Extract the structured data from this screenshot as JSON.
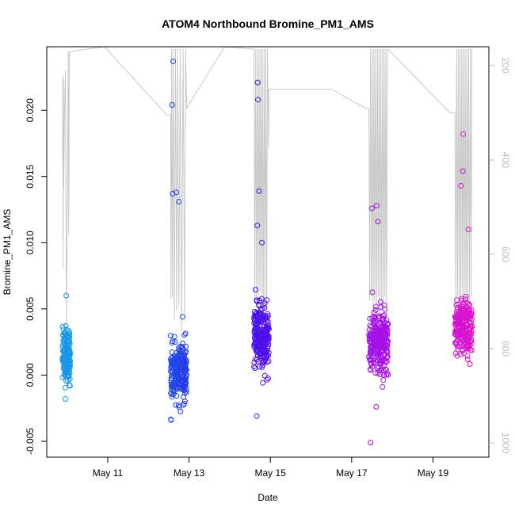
{
  "chart_data": {
    "type": "scatter",
    "title": "ATOM4 Northbound Bromine_PM1_AMS",
    "xlabel": "Date",
    "ylabel": "Bromine_PM1_AMS",
    "xlim": [
      "2016-05-09T12:00",
      "2016-05-20T09:00"
    ],
    "ylim": [
      -0.0062,
      0.0248
    ],
    "x_ticks": [
      {
        "date": "2016-05-11",
        "label": "May 11"
      },
      {
        "date": "2016-05-13",
        "label": "May 13"
      },
      {
        "date": "2016-05-15",
        "label": "May 15"
      },
      {
        "date": "2016-05-17",
        "label": "May 17"
      },
      {
        "date": "2016-05-19",
        "label": "May 19"
      }
    ],
    "y_ticks": [
      {
        "value": -0.005,
        "label": "-0.005"
      },
      {
        "value": 0.0,
        "label": "0.000"
      },
      {
        "value": 0.005,
        "label": "0.005"
      },
      {
        "value": 0.01,
        "label": "0.010"
      },
      {
        "value": 0.015,
        "label": "0.015"
      },
      {
        "value": 0.02,
        "label": "0.020"
      }
    ],
    "right_axis": {
      "inverted": true,
      "ylim": [
        1030,
        160
      ],
      "ticks": [
        {
          "value": 200,
          "label": "200"
        },
        {
          "value": 400,
          "label": "400"
        },
        {
          "value": 600,
          "label": "600"
        },
        {
          "value": 800,
          "label": "800"
        },
        {
          "value": 1000,
          "label": "1000"
        }
      ],
      "color": "#bdbdbd"
    },
    "grid": false,
    "legend": "none",
    "marker": "open-circle",
    "line_color": "#c8c8c8",
    "color_gradient": [
      "#17a2e6",
      "#1f6fe8",
      "#2a10e8",
      "#7d10e8",
      "#b010e6",
      "#e914c4"
    ],
    "clusters": [
      {
        "start": "2016-05-09T21:20",
        "end": "2016-05-10T01:50",
        "center": 0.0015,
        "spread": 0.0012,
        "count": 160
      },
      {
        "start": "2016-05-12T13:10",
        "end": "2016-05-12T22:40",
        "center": 0.0002,
        "spread": 0.0012,
        "count": 240
      },
      {
        "start": "2016-05-14T14:20",
        "end": "2016-05-14T23:10",
        "center": 0.0028,
        "spread": 0.0014,
        "count": 260
      },
      {
        "start": "2016-05-17T10:10",
        "end": "2016-05-17T21:30",
        "center": 0.0025,
        "spread": 0.0014,
        "count": 280
      },
      {
        "start": "2016-05-19T13:00",
        "end": "2016-05-19T23:10",
        "center": 0.0035,
        "spread": 0.0012,
        "count": 240
      }
    ],
    "outliers": [
      {
        "x": "2016-05-09T23:30",
        "y": 0.006
      },
      {
        "x": "2016-05-09T23:00",
        "y": -0.0018
      },
      {
        "x": "2016-05-12T14:40",
        "y": 0.0237
      },
      {
        "x": "2016-05-12T14:00",
        "y": 0.0204
      },
      {
        "x": "2016-05-12T14:20",
        "y": 0.0137
      },
      {
        "x": "2016-05-12T16:30",
        "y": 0.0138
      },
      {
        "x": "2016-05-12T18:00",
        "y": 0.0131
      },
      {
        "x": "2016-05-12T20:10",
        "y": 0.0044
      },
      {
        "x": "2016-05-12T13:20",
        "y": -0.0034
      },
      {
        "x": "2016-05-14T16:30",
        "y": 0.0221
      },
      {
        "x": "2016-05-14T16:40",
        "y": 0.0208
      },
      {
        "x": "2016-05-14T17:20",
        "y": 0.0139
      },
      {
        "x": "2016-05-14T16:20",
        "y": 0.0113
      },
      {
        "x": "2016-05-14T19:00",
        "y": 0.01
      },
      {
        "x": "2016-05-14T16:00",
        "y": -0.0031
      },
      {
        "x": "2016-05-17T12:00",
        "y": 0.0126
      },
      {
        "x": "2016-05-17T14:50",
        "y": 0.0128
      },
      {
        "x": "2016-05-17T15:30",
        "y": 0.0116
      },
      {
        "x": "2016-05-17T14:30",
        "y": -0.0024
      },
      {
        "x": "2016-05-17T11:10",
        "y": -0.0051
      },
      {
        "x": "2016-05-19T17:50",
        "y": 0.0182
      },
      {
        "x": "2016-05-19T17:40",
        "y": 0.0154
      },
      {
        "x": "2016-05-19T16:30",
        "y": 0.0143
      },
      {
        "x": "2016-05-19T21:00",
        "y": 0.011
      }
    ],
    "right_series": [
      [
        "2016-05-09T21:20",
        400
      ],
      [
        "2016-05-09T21:30",
        220
      ],
      [
        "2016-05-09T21:40",
        630
      ],
      [
        "2016-05-09T21:50",
        230
      ],
      [
        "2016-05-09T22:00",
        460
      ],
      [
        "2016-05-09T22:30",
        300
      ],
      [
        "2016-05-09T23:00",
        210
      ],
      [
        "2016-05-09T23:40",
        760
      ],
      [
        "2016-05-10T00:10",
        480
      ],
      [
        "2016-05-10T00:40",
        170
      ],
      [
        "2016-05-10T01:00",
        560
      ],
      [
        "2016-05-10T01:20",
        170
      ],
      [
        "2016-05-10T01:50",
        170
      ],
      [
        "2016-05-10T22:00",
        160
      ],
      [
        "2016-05-12T11:00",
        305
      ],
      [
        "2016-05-12T13:10",
        305
      ],
      [
        "2016-05-12T13:20",
        695
      ],
      [
        "2016-05-12T13:40",
        165
      ],
      [
        "2016-05-12T14:10",
        690
      ],
      [
        "2016-05-12T14:40",
        165
      ],
      [
        "2016-05-12T15:20",
        740
      ],
      [
        "2016-05-12T16:00",
        165
      ],
      [
        "2016-05-12T16:40",
        720
      ],
      [
        "2016-05-12T17:20",
        165
      ],
      [
        "2016-05-12T18:00",
        710
      ],
      [
        "2016-05-12T18:50",
        165
      ],
      [
        "2016-05-12T19:40",
        760
      ],
      [
        "2016-05-12T20:30",
        165
      ],
      [
        "2016-05-12T21:20",
        730
      ],
      [
        "2016-05-12T22:00",
        165
      ],
      [
        "2016-05-12T22:40",
        290
      ],
      [
        "2016-05-13T21:00",
        160
      ],
      [
        "2016-05-14T14:20",
        165
      ],
      [
        "2016-05-14T14:50",
        700
      ],
      [
        "2016-05-14T15:20",
        165
      ],
      [
        "2016-05-14T15:50",
        690
      ],
      [
        "2016-05-14T16:20",
        165
      ],
      [
        "2016-05-14T16:50",
        720
      ],
      [
        "2016-05-14T17:20",
        165
      ],
      [
        "2016-05-14T17:50",
        680
      ],
      [
        "2016-05-14T18:20",
        165
      ],
      [
        "2016-05-14T18:50",
        700
      ],
      [
        "2016-05-14T19:20",
        165
      ],
      [
        "2016-05-14T19:50",
        740
      ],
      [
        "2016-05-14T20:20",
        165
      ],
      [
        "2016-05-14T20:50",
        705
      ],
      [
        "2016-05-14T21:20",
        165
      ],
      [
        "2016-05-14T21:50",
        720
      ],
      [
        "2016-05-14T22:20",
        165
      ],
      [
        "2016-05-14T23:00",
        375
      ],
      [
        "2016-05-14T23:10",
        250
      ],
      [
        "2016-05-16T12:00",
        250
      ],
      [
        "2016-05-17T08:00",
        290
      ],
      [
        "2016-05-17T10:10",
        290
      ],
      [
        "2016-05-17T10:40",
        700
      ],
      [
        "2016-05-17T11:10",
        165
      ],
      [
        "2016-05-17T11:40",
        690
      ],
      [
        "2016-05-17T12:10",
        165
      ],
      [
        "2016-05-17T12:40",
        735
      ],
      [
        "2016-05-17T13:10",
        165
      ],
      [
        "2016-05-17T13:40",
        700
      ],
      [
        "2016-05-17T14:10",
        165
      ],
      [
        "2016-05-17T14:40",
        720
      ],
      [
        "2016-05-17T15:10",
        165
      ],
      [
        "2016-05-17T15:40",
        690
      ],
      [
        "2016-05-17T16:10",
        165
      ],
      [
        "2016-05-17T16:40",
        740
      ],
      [
        "2016-05-17T17:10",
        165
      ],
      [
        "2016-05-17T17:40",
        705
      ],
      [
        "2016-05-17T18:10",
        165
      ],
      [
        "2016-05-17T18:40",
        720
      ],
      [
        "2016-05-17T19:10",
        165
      ],
      [
        "2016-05-17T19:40",
        690
      ],
      [
        "2016-05-17T20:10",
        165
      ],
      [
        "2016-05-17T20:40",
        730
      ],
      [
        "2016-05-17T21:10",
        165
      ],
      [
        "2016-05-17T21:30",
        165
      ],
      [
        "2016-05-19T10:00",
        300
      ],
      [
        "2016-05-19T13:00",
        300
      ],
      [
        "2016-05-19T13:30",
        700
      ],
      [
        "2016-05-19T14:00",
        165
      ],
      [
        "2016-05-19T14:30",
        690
      ],
      [
        "2016-05-19T15:00",
        165
      ],
      [
        "2016-05-19T15:30",
        730
      ],
      [
        "2016-05-19T16:00",
        165
      ],
      [
        "2016-05-19T16:30",
        700
      ],
      [
        "2016-05-19T17:00",
        165
      ],
      [
        "2016-05-19T17:30",
        720
      ],
      [
        "2016-05-19T18:00",
        165
      ],
      [
        "2016-05-19T18:30",
        690
      ],
      [
        "2016-05-19T19:00",
        165
      ],
      [
        "2016-05-19T19:30",
        740
      ],
      [
        "2016-05-19T20:00",
        165
      ],
      [
        "2016-05-19T20:30",
        705
      ],
      [
        "2016-05-19T21:00",
        165
      ],
      [
        "2016-05-19T21:30",
        720
      ],
      [
        "2016-05-19T22:00",
        165
      ],
      [
        "2016-05-19T22:30",
        690
      ],
      [
        "2016-05-19T23:00",
        165
      ],
      [
        "2016-05-19T23:10",
        165
      ]
    ]
  }
}
